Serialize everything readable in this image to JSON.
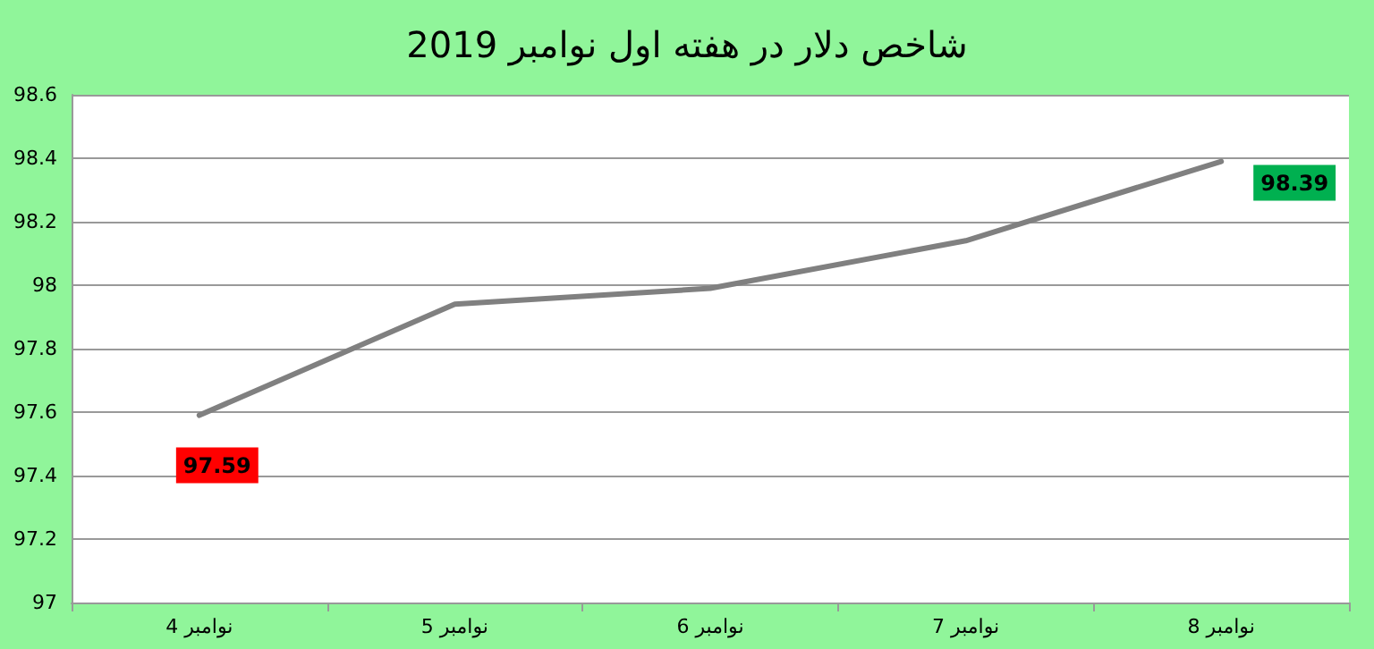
{
  "chart_data": {
    "type": "line",
    "title": "شاخص دلار در هفته اول نوامبر 2019",
    "categories": [
      "4 نوامبر",
      "5 نوامبر",
      "6 نوامبر",
      "7 نوامبر",
      "8 نوامبر"
    ],
    "series": [
      {
        "color": "#808080",
        "values": [
          97.59,
          97.94,
          97.99,
          98.14,
          98.39
        ],
        "value_labels": [
          "97.59",
          null,
          null,
          null,
          "98.39"
        ]
      }
    ],
    "ylim": [
      97,
      98.6
    ],
    "yticks": [
      97,
      97.2,
      97.4,
      97.6,
      97.8,
      98,
      98.2,
      98.4,
      98.6
    ],
    "grid": "y",
    "marker": "none",
    "line_style": "solid"
  }
}
